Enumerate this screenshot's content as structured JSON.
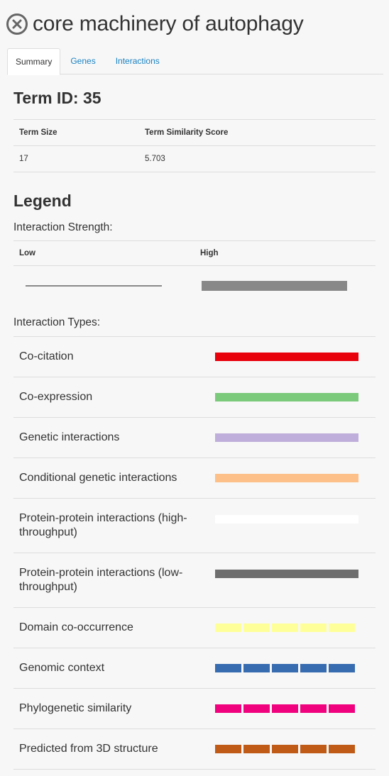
{
  "header": {
    "title": "core machinery of autophagy"
  },
  "tabs": [
    {
      "label": "Summary",
      "active": true
    },
    {
      "label": "Genes",
      "active": false
    },
    {
      "label": "Interactions",
      "active": false
    }
  ],
  "term": {
    "id_label": "Term ID: 35",
    "columns": [
      "Term Size",
      "Term Similarity Score"
    ],
    "values": [
      "17",
      "5.703"
    ]
  },
  "legend": {
    "title": "Legend",
    "strength_label": "Interaction Strength:",
    "low": "Low",
    "high": "High",
    "types_label": "Interaction Types:",
    "types": [
      {
        "label": "Co-citation",
        "color": "#e8000b",
        "style": "solid"
      },
      {
        "label": "Co-expression",
        "color": "#7bc97b",
        "style": "solid"
      },
      {
        "label": "Genetic interactions",
        "color": "#bfaedb",
        "style": "solid"
      },
      {
        "label": "Conditional genetic interactions",
        "color": "#fdc088",
        "style": "solid"
      },
      {
        "label": "Protein-protein interactions (high-throughput)",
        "color": "#ffffff",
        "style": "solid"
      },
      {
        "label": "Protein-protein interactions (low-throughput)",
        "color": "#6e6e6e",
        "style": "solid"
      },
      {
        "label": "Domain co-occurrence",
        "color": "#ffff99",
        "style": "dashed"
      },
      {
        "label": "Genomic context",
        "color": "#386cb0",
        "style": "dashed"
      },
      {
        "label": "Phylogenetic similarity",
        "color": "#f0027f",
        "style": "dashed"
      },
      {
        "label": "Predicted from 3D structure",
        "color": "#bf5b17",
        "style": "dashed"
      }
    ]
  }
}
